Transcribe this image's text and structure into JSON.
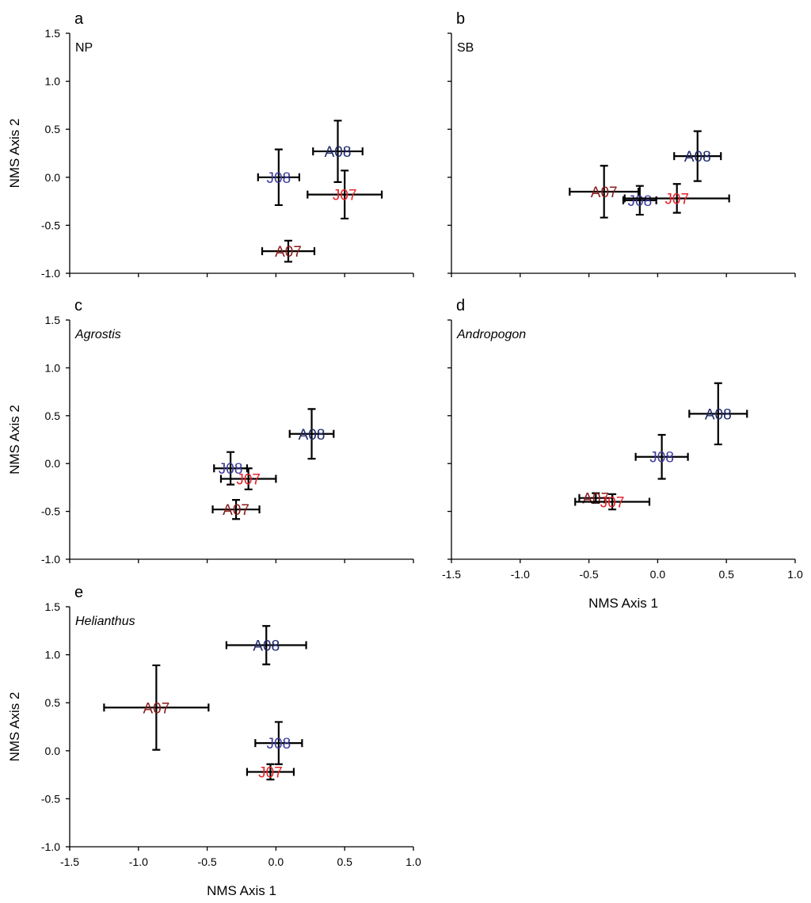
{
  "colors": {
    "A07": "#8b1a1a",
    "A08": "#1f2a6b",
    "J07": "#e8232a",
    "J08": "#3d3d9e"
  },
  "chart_data": [
    {
      "type": "scatter",
      "panel": "a",
      "title": "NP",
      "title_italic": false,
      "xlabel": "",
      "ylabel": "NMS Axis 2",
      "xlim": [
        -1.5,
        1.0
      ],
      "ylim": [
        -1.0,
        1.5
      ],
      "xticks": [],
      "yticks": [
        "-1.0",
        "-0.5",
        "0.0",
        "0.5",
        "1.0",
        "1.5"
      ],
      "points": [
        {
          "label": "A08",
          "x": 0.45,
          "y": 0.27,
          "xerr": 0.18,
          "yerr": 0.32
        },
        {
          "label": "J08",
          "x": 0.02,
          "y": 0.0,
          "xerr": 0.15,
          "yerr": 0.29
        },
        {
          "label": "J07",
          "x": 0.5,
          "y": -0.18,
          "xerr": 0.27,
          "yerr": 0.25
        },
        {
          "label": "A07",
          "x": 0.09,
          "y": -0.77,
          "xerr": 0.19,
          "yerr": 0.11
        }
      ]
    },
    {
      "type": "scatter",
      "panel": "b",
      "title": "SB",
      "title_italic": false,
      "xlabel": "",
      "ylabel": "",
      "xlim": [
        -1.5,
        1.0
      ],
      "ylim": [
        -1.0,
        1.5
      ],
      "xticks": [],
      "yticks": [],
      "points": [
        {
          "label": "A08",
          "x": 0.29,
          "y": 0.22,
          "xerr": 0.17,
          "yerr": 0.26
        },
        {
          "label": "A07",
          "x": -0.39,
          "y": -0.15,
          "xerr": 0.25,
          "yerr": 0.27
        },
        {
          "label": "J08",
          "x": -0.13,
          "y": -0.24,
          "xerr": 0.12,
          "yerr": 0.15
        },
        {
          "label": "J07",
          "x": 0.14,
          "y": -0.22,
          "xerr": 0.38,
          "yerr": 0.15
        }
      ]
    },
    {
      "type": "scatter",
      "panel": "c",
      "title": "Agrostis",
      "title_italic": true,
      "xlabel": "",
      "ylabel": "NMS Axis 2",
      "xlim": [
        -1.5,
        1.0
      ],
      "ylim": [
        -1.0,
        1.5
      ],
      "xticks": [],
      "yticks": [
        "-1.0",
        "-0.5",
        "0.0",
        "0.5",
        "1.0",
        "1.5"
      ],
      "points": [
        {
          "label": "A08",
          "x": 0.26,
          "y": 0.31,
          "xerr": 0.16,
          "yerr": 0.26
        },
        {
          "label": "J08",
          "x": -0.33,
          "y": -0.05,
          "xerr": 0.12,
          "yerr": 0.17
        },
        {
          "label": "J07",
          "x": -0.2,
          "y": -0.16,
          "xerr": 0.2,
          "yerr": 0.11
        },
        {
          "label": "A07",
          "x": -0.29,
          "y": -0.48,
          "xerr": 0.17,
          "yerr": 0.1
        }
      ]
    },
    {
      "type": "scatter",
      "panel": "d",
      "title": "Andropogon",
      "title_italic": true,
      "xlabel": "NMS Axis 1",
      "ylabel": "",
      "xlim": [
        -1.5,
        1.0
      ],
      "ylim": [
        -1.0,
        1.5
      ],
      "xticks": [
        "-1.5",
        "-1.0",
        "-0.5",
        "0.0",
        "0.5",
        "1.0"
      ],
      "yticks": [],
      "points": [
        {
          "label": "A08",
          "x": 0.44,
          "y": 0.52,
          "xerr": 0.21,
          "yerr": 0.32
        },
        {
          "label": "J08",
          "x": 0.03,
          "y": 0.07,
          "xerr": 0.19,
          "yerr": 0.23
        },
        {
          "label": "A07",
          "x": -0.45,
          "y": -0.36,
          "xerr": 0.12,
          "yerr": 0.05
        },
        {
          "label": "J07",
          "x": -0.33,
          "y": -0.4,
          "xerr": 0.27,
          "yerr": 0.08
        }
      ]
    },
    {
      "type": "scatter",
      "panel": "e",
      "title": "Helianthus",
      "title_italic": true,
      "xlabel": "NMS Axis 1",
      "ylabel": "NMS Axis 2",
      "xlim": [
        -1.5,
        1.0
      ],
      "ylim": [
        -1.0,
        1.5
      ],
      "xticks": [
        "-1.5",
        "-1.0",
        "-0.5",
        "0.0",
        "0.5",
        "1.0"
      ],
      "yticks": [
        "-1.0",
        "-0.5",
        "0.0",
        "0.5",
        "1.0",
        "1.5"
      ],
      "points": [
        {
          "label": "A08",
          "x": -0.07,
          "y": 1.1,
          "xerr": 0.29,
          "yerr": 0.2
        },
        {
          "label": "A07",
          "x": -0.87,
          "y": 0.45,
          "xerr": 0.38,
          "yerr": 0.44
        },
        {
          "label": "J08",
          "x": 0.02,
          "y": 0.08,
          "xerr": 0.17,
          "yerr": 0.22
        },
        {
          "label": "J07",
          "x": -0.04,
          "y": -0.22,
          "xerr": 0.17,
          "yerr": 0.08
        }
      ]
    }
  ]
}
